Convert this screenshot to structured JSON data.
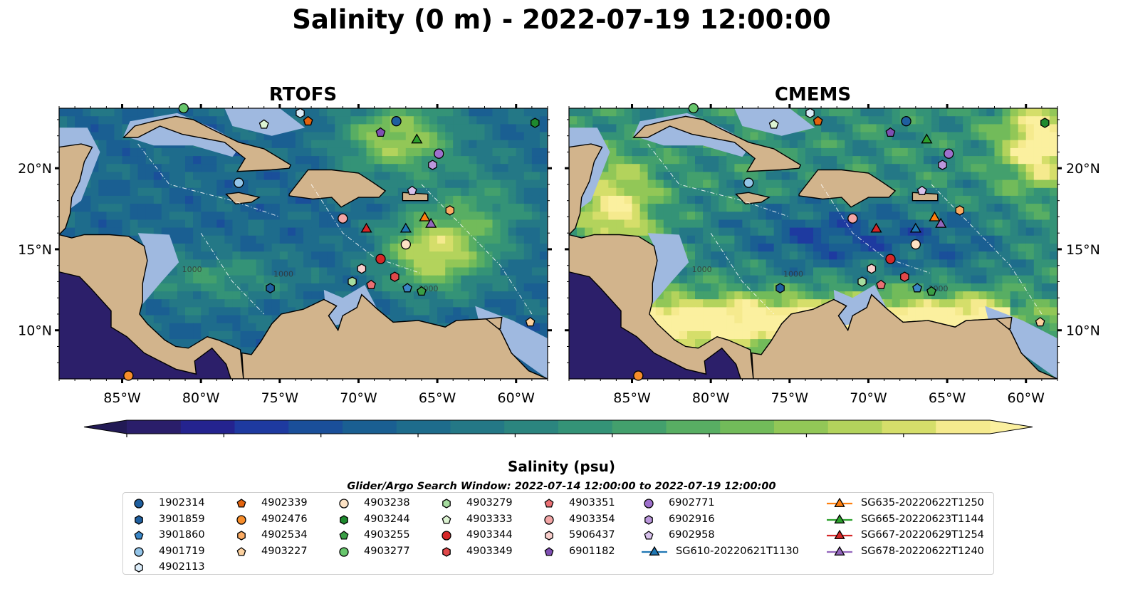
{
  "figure": {
    "title": "Salinity (0 m) - 2022-07-19 12:00:00",
    "panels": [
      {
        "id": "rtofs",
        "title": "RTOFS"
      },
      {
        "id": "cmems",
        "title": "CMEMS"
      }
    ],
    "lon_ticks": [
      "85°W",
      "80°W",
      "75°W",
      "70°W",
      "65°W",
      "60°W"
    ],
    "lat_ticks": [
      "20°N",
      "15°N",
      "10°N"
    ],
    "contour_labels": [
      "1000",
      "1000",
      "1000"
    ]
  },
  "colorbar": {
    "label": "Salinity (psu)",
    "ticks": [
      "35.5",
      "35.7",
      "35.9",
      "36.1",
      "36.3",
      "36.5",
      "36.7",
      "36.9",
      "37.1"
    ],
    "range": [
      35.5,
      37.1
    ],
    "extend": "both",
    "colors": [
      "#2a1e6a",
      "#24238f",
      "#1e3aa0",
      "#1a4f9a",
      "#1a5f92",
      "#1e6c8c",
      "#247886",
      "#2b857f",
      "#349377",
      "#43a06d",
      "#58ae63",
      "#72bb5a",
      "#92c757",
      "#b3d35c",
      "#d5de6a",
      "#f5ea8e"
    ],
    "under_color": "#221a55",
    "over_color": "#fbf09f"
  },
  "map_colors": {
    "land": "#d2b48c",
    "shelf": "#9fb9e0",
    "pacific": "#2c1f6a"
  },
  "legend": {
    "search_window": "Glider/Argo Search Window: 2022-07-14 12:00:00 to 2022-07-19 12:00:00",
    "columns": [
      [
        {
          "label": "1902314",
          "marker": "circle",
          "color": "#1f5f9f"
        },
        {
          "label": "3901859",
          "marker": "hexagon",
          "color": "#1f5f9f"
        },
        {
          "label": "3901860",
          "marker": "pentagon",
          "color": "#3a86c6"
        },
        {
          "label": "4901719",
          "marker": "circle",
          "color": "#93c4e8"
        },
        {
          "label": "4902113",
          "marker": "hexagon",
          "color": "#dbecf9"
        }
      ],
      [
        {
          "label": "4902339",
          "marker": "pentagon",
          "color": "#e3630d"
        },
        {
          "label": "4902476",
          "marker": "circle",
          "color": "#f78d2a"
        },
        {
          "label": "4902534",
          "marker": "hexagon",
          "color": "#fbab63"
        },
        {
          "label": "4903227",
          "marker": "pentagon",
          "color": "#fcd19f"
        }
      ],
      [
        {
          "label": "4903238",
          "marker": "circle",
          "color": "#fde2c4"
        },
        {
          "label": "4903244",
          "marker": "hexagon",
          "color": "#1e8a2e"
        },
        {
          "label": "4903255",
          "marker": "pentagon",
          "color": "#3a9e45"
        },
        {
          "label": "4903277",
          "marker": "circle",
          "color": "#67c66c"
        }
      ],
      [
        {
          "label": "4903279",
          "marker": "hexagon",
          "color": "#a6dc9f"
        },
        {
          "label": "4903333",
          "marker": "pentagon",
          "color": "#dcf3d2"
        },
        {
          "label": "4903344",
          "marker": "circle",
          "color": "#d62728"
        },
        {
          "label": "4903349",
          "marker": "hexagon",
          "color": "#e0484a"
        }
      ],
      [
        {
          "label": "4903351",
          "marker": "pentagon",
          "color": "#ea6f73"
        },
        {
          "label": "4903354",
          "marker": "circle",
          "color": "#f3a6a6"
        },
        {
          "label": "5906437",
          "marker": "hexagon",
          "color": "#f9cfcc"
        },
        {
          "label": "6901182",
          "marker": "pentagon",
          "color": "#7f4fb3"
        }
      ],
      [
        {
          "label": "6902771",
          "marker": "circle",
          "color": "#9e70cc"
        },
        {
          "label": "6902916",
          "marker": "hexagon",
          "color": "#bb97dc"
        },
        {
          "label": "6902958",
          "marker": "pentagon",
          "color": "#d8c2ec"
        },
        {
          "label": "SG610-20220621T1130",
          "marker": "triangle-line",
          "color": "#1f77b4"
        }
      ],
      [
        {
          "label": "SG635-20220622T1250",
          "marker": "triangle-line",
          "color": "#ff7f0e"
        },
        {
          "label": "SG665-20220623T1144",
          "marker": "triangle-line",
          "color": "#2ca02c"
        },
        {
          "label": "SG667-20220629T1254",
          "marker": "triangle-line",
          "color": "#d62728"
        },
        {
          "label": "SG678-20220622T1240",
          "marker": "triangle-line",
          "color": "#9467bd"
        }
      ]
    ]
  },
  "platforms": [
    {
      "id": "1902314",
      "lon": -67.6,
      "lat": 22.9
    },
    {
      "id": "3901859",
      "lon": -75.6,
      "lat": 12.6
    },
    {
      "id": "3901860",
      "lon": -66.9,
      "lat": 12.6
    },
    {
      "id": "4901719",
      "lon": -77.6,
      "lat": 19.1
    },
    {
      "id": "4902113",
      "lon": -73.7,
      "lat": 23.4
    },
    {
      "id": "4902339",
      "lon": -73.2,
      "lat": 22.9
    },
    {
      "id": "4902476",
      "lon": -84.6,
      "lat": 7.2
    },
    {
      "id": "4902534",
      "lon": -64.2,
      "lat": 17.4
    },
    {
      "id": "4903227",
      "lon": -59.1,
      "lat": 10.5
    },
    {
      "id": "4903238",
      "lon": -67.0,
      "lat": 15.3
    },
    {
      "id": "4903244",
      "lon": -58.8,
      "lat": 22.8
    },
    {
      "id": "4903255",
      "lon": -66.0,
      "lat": 12.4
    },
    {
      "id": "4903277",
      "lon": -81.1,
      "lat": 23.7
    },
    {
      "id": "4903279",
      "lon": -70.4,
      "lat": 13.0
    },
    {
      "id": "4903333",
      "lon": -76.0,
      "lat": 22.7
    },
    {
      "id": "4903344",
      "lon": -68.6,
      "lat": 14.4
    },
    {
      "id": "4903349",
      "lon": -67.7,
      "lat": 13.3
    },
    {
      "id": "4903351",
      "lon": -69.2,
      "lat": 12.8
    },
    {
      "id": "4903354",
      "lon": -71.0,
      "lat": 16.9
    },
    {
      "id": "5906437",
      "lon": -69.8,
      "lat": 13.8
    },
    {
      "id": "6901182",
      "lon": -68.6,
      "lat": 22.2
    },
    {
      "id": "6902771",
      "lon": -64.9,
      "lat": 20.9
    },
    {
      "id": "6902916",
      "lon": -65.3,
      "lat": 20.2
    },
    {
      "id": "6902958",
      "lon": -66.6,
      "lat": 18.6
    },
    {
      "id": "SG610-20220621T1130",
      "lon": -67.0,
      "lat": 16.3
    },
    {
      "id": "SG635-20220622T1250",
      "lon": -65.8,
      "lat": 17.0
    },
    {
      "id": "SG665-20220623T1144",
      "lon": -66.3,
      "lat": 21.8
    },
    {
      "id": "SG667-20220629T1254",
      "lon": -69.5,
      "lat": 16.3
    },
    {
      "id": "SG678-20220622T1240",
      "lon": -65.4,
      "lat": 16.6
    }
  ],
  "map_extent": {
    "lon": [
      -89,
      -58
    ],
    "lat": [
      7,
      23.7
    ]
  }
}
